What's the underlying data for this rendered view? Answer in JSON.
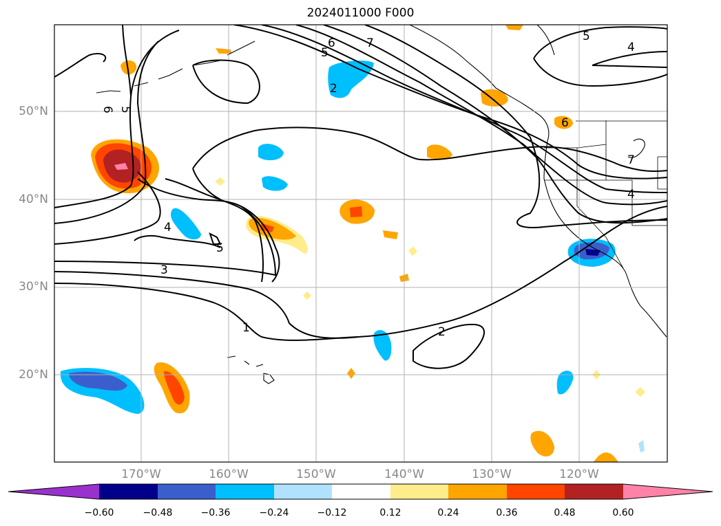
{
  "title": "2024011000 F000",
  "map": {
    "lat_labels": [
      "50°N",
      "40°N",
      "30°N",
      "20°N"
    ],
    "lon_labels": [
      "170°W",
      "160°W",
      "150°W",
      "140°W",
      "130°W",
      "120°W"
    ],
    "contour_labels": [
      "6",
      "5",
      "7",
      "6",
      "5",
      "5",
      "4",
      "2",
      "4",
      "5",
      "3",
      "1",
      "2",
      "7",
      "4",
      "6"
    ]
  },
  "colorbar": {
    "colors": [
      "#9932cc",
      "#00008b",
      "#3a5fcd",
      "#00bfff",
      "#b0e2ff",
      "#ffffff",
      "#ffec8b",
      "#ffa500",
      "#ff4500",
      "#b22222",
      "#ff83a8"
    ],
    "tick_labels": [
      "−0.60",
      "−0.48",
      "−0.36",
      "−0.24",
      "−0.12",
      "0.12",
      "0.24",
      "0.36",
      "0.48",
      "0.60"
    ]
  }
}
